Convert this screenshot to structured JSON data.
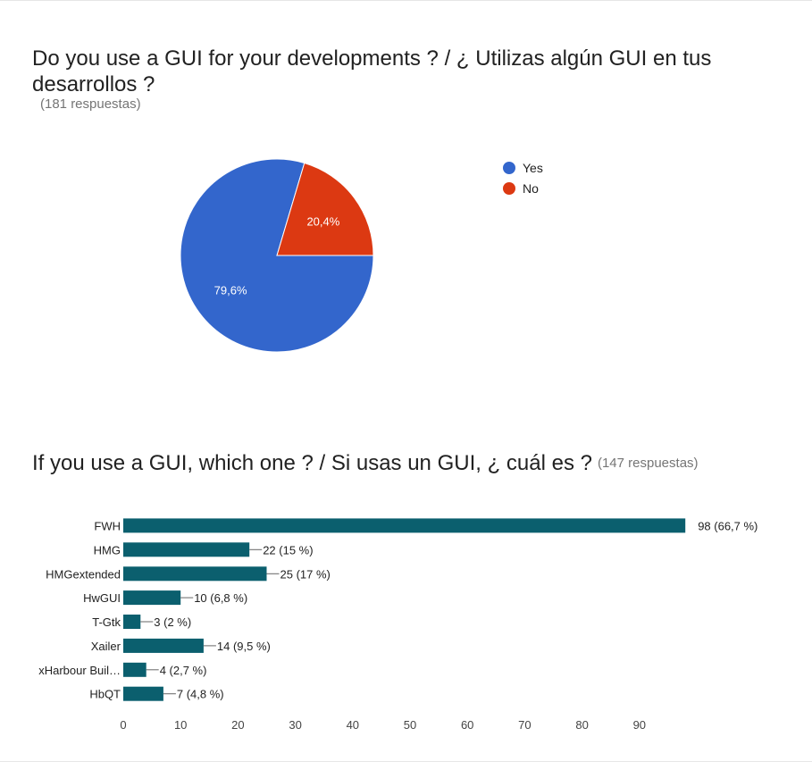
{
  "question1": {
    "title": "Do you use a GUI for your developments ? / ¿ Utilizas algún GUI en tus desarrollos ?",
    "responses": "(181 respuestas)"
  },
  "question2": {
    "title": "If you use a GUI, which one ? / Si usas un GUI, ¿ cuál es ?",
    "responses": "(147 respuestas)"
  },
  "chart_data": [
    {
      "type": "pie",
      "labels": [
        "Yes",
        "No"
      ],
      "values": [
        79.6,
        20.4
      ],
      "slice_labels": [
        "79,6%",
        "20,4%"
      ],
      "colors": [
        "#3366cc",
        "#dc3912"
      ],
      "legend_position": "right"
    },
    {
      "type": "bar",
      "orientation": "horizontal",
      "categories": [
        "FWH",
        "HMG",
        "HMGextended",
        "HwGUI",
        "T-Gtk",
        "Xailer",
        "xHarbour Buil…",
        "HbQT"
      ],
      "values": [
        98,
        22,
        25,
        10,
        3,
        14,
        4,
        7
      ],
      "data_labels": [
        "98 (66,7 %)",
        "22 (15 %)",
        "25 (17 %)",
        "10 (6,8 %)",
        "3 (2 %)",
        "14 (9,5 %)",
        "4 (2,7 %)",
        "7 (4,8 %)"
      ],
      "xticks": [
        0,
        10,
        20,
        30,
        40,
        50,
        60,
        70,
        80,
        90
      ],
      "xlim": [
        0,
        100
      ],
      "color": "#0b5f6e",
      "legend_position": "none"
    }
  ]
}
